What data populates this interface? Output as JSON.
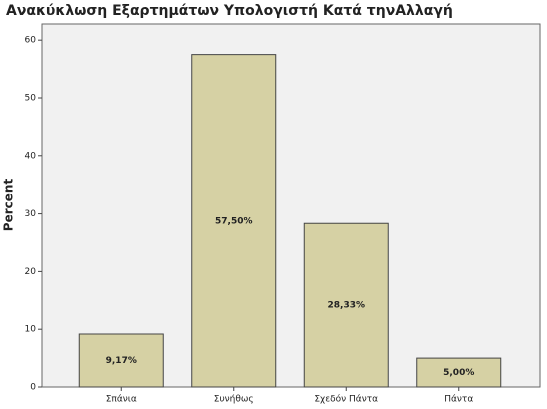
{
  "chart_data": {
    "type": "bar",
    "title": "Ανακύκλωση Εξαρτημάτων Υπολογιστή Κατά τηνΑλλαγή",
    "y_label": "Percent",
    "categories": [
      "Σπάνια",
      "Συνήθως",
      "Σχεδόν Πάντα",
      "Πάντα"
    ],
    "values": [
      9.17,
      57.5,
      28.33,
      5.0
    ],
    "value_labels": [
      "9,17%",
      "57,50%",
      "28,33%",
      "5,00%"
    ],
    "color": "#d6d1a4",
    "ylim": [
      0,
      62.8
    ],
    "yticks": [
      0,
      10,
      20,
      30,
      40,
      50,
      60
    ]
  }
}
